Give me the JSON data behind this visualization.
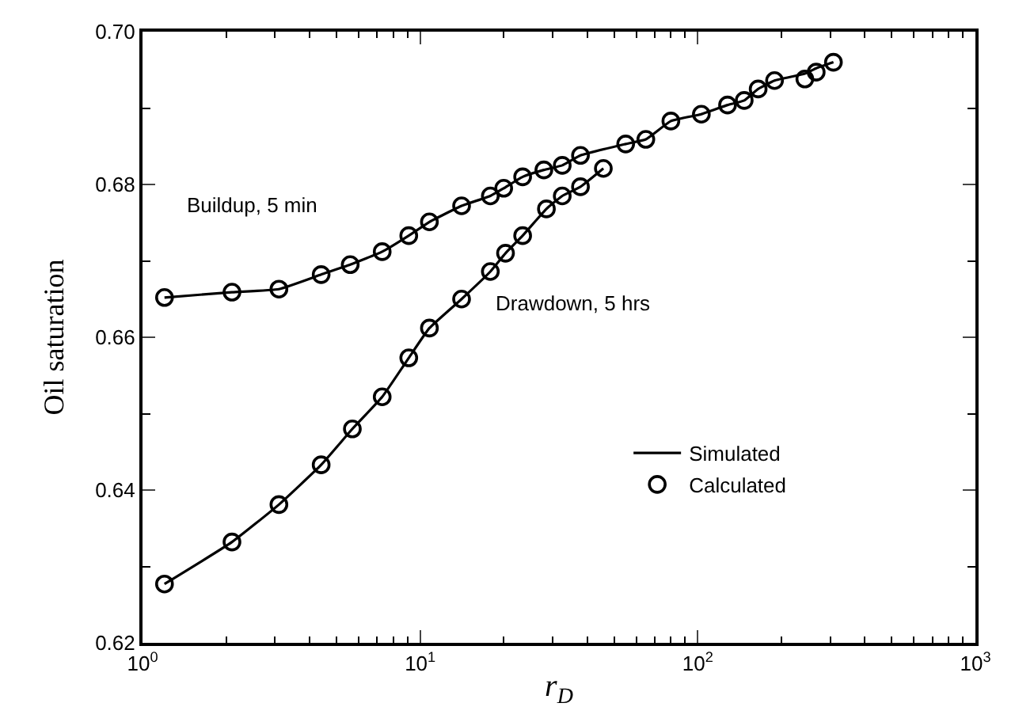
{
  "chart_data": {
    "type": "scatter",
    "xlabel": "r$_{D}$",
    "ylabel": "Oil saturation",
    "log": "x",
    "xlim": [
      1,
      1000
    ],
    "xticks": [
      {
        "value": 1,
        "label": "10$^{0}$"
      },
      {
        "value": 10,
        "label": "10$^{1}$"
      },
      {
        "value": 100,
        "label": "10$^{2}$"
      },
      {
        "value": 1000,
        "label": "10$^{3}$"
      }
    ],
    "ylim": [
      0.62,
      0.7
    ],
    "yticks": [
      {
        "value": 0.62,
        "label": "0.62"
      },
      {
        "value": 0.64,
        "label": "0.64"
      },
      {
        "value": 0.66,
        "label": "0.66"
      },
      {
        "value": 0.68,
        "label": "0.68"
      },
      {
        "value": 0.7,
        "label": "0.70"
      }
    ],
    "legend": "bottom right",
    "series": [
      {
        "name": "Simulated",
        "type": "line",
        "color": "#000000",
        "line_style": "solid",
        "marker": "none",
        "x": [
          1.2,
          2.1,
          3.1,
          4.4,
          5.6,
          7.3,
          9.1,
          10.8,
          14.1,
          17.9,
          20,
          23.4,
          27.9,
          32.5,
          37.8,
          55,
          65,
          80,
          103,
          128,
          147,
          165,
          189,
          243,
          267,
          308
        ],
        "values": [
          0.6652,
          0.6659,
          0.6663,
          0.6682,
          0.6695,
          0.6712,
          0.6733,
          0.6751,
          0.6772,
          0.6785,
          0.6795,
          0.681,
          0.6819,
          0.6825,
          0.6838,
          0.6853,
          0.6859,
          0.6883,
          0.6892,
          0.6904,
          0.691,
          0.6925,
          0.6936,
          0.6945,
          0.6952,
          0.696
        ]
      },
      {
        "type": "line",
        "color": "#000000",
        "line_style": "solid",
        "marker": "none",
        "x": [
          1.2,
          2.1,
          3.1,
          4.4,
          5.7,
          7.3,
          9.1,
          10.8,
          14.1,
          17.9,
          20.3,
          23.4,
          28.5,
          32.5,
          37.8,
          45.7
        ],
        "values": [
          0.6277,
          0.6332,
          0.6381,
          0.6433,
          0.648,
          0.6522,
          0.6573,
          0.6612,
          0.665,
          0.6686,
          0.671,
          0.6733,
          0.6768,
          0.6785,
          0.6797,
          0.6821
        ]
      },
      {
        "name": "Calculated",
        "color": "#000000",
        "marker": "circle",
        "x": [
          1.2,
          2.1,
          3.1,
          4.4,
          5.6,
          7.3,
          9.1,
          10.8,
          14.1,
          17.9,
          20,
          23.4,
          27.9,
          32.5,
          37.8
        ],
        "values": [
          0.6652,
          0.6659,
          0.6663,
          0.6682,
          0.6695,
          0.6712,
          0.6733,
          0.6751,
          0.6772,
          0.6785,
          0.6795,
          0.681,
          0.6819,
          0.6825,
          0.6838
        ]
      },
      {
        "color": "#000000",
        "marker": "circle",
        "x": [
          1.2,
          2.1,
          3.1,
          4.4,
          5.7,
          7.3,
          9.1,
          10.8,
          14.1,
          17.9,
          20.3,
          23.4,
          28.5,
          32.5,
          37.8,
          45.7,
          55,
          65,
          80,
          103,
          128,
          147,
          165,
          189,
          243,
          267,
          308
        ],
        "values": [
          0.6277,
          0.6332,
          0.6381,
          0.6433,
          0.648,
          0.6522,
          0.6573,
          0.6612,
          0.665,
          0.6686,
          0.671,
          0.6733,
          0.6768,
          0.6785,
          0.6797,
          0.6821,
          0.6853,
          0.6859,
          0.6883,
          0.6892,
          0.6904,
          0.691,
          0.6925,
          0.6936,
          0.6938,
          0.6947,
          0.696
        ]
      }
    ],
    "annotations": [
      "Buildup, 5 min",
      "Drawdown, 5 hrs"
    ]
  }
}
